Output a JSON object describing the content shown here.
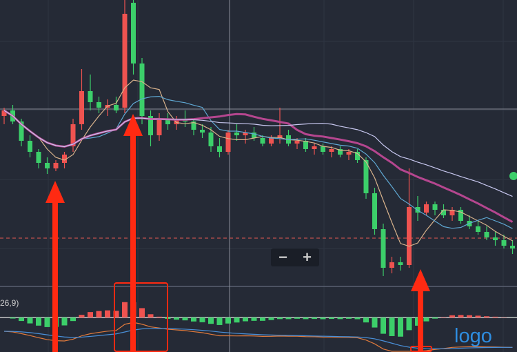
{
  "chart_data": {
    "type": "candlestick",
    "up_color": "#ef5350",
    "down_color": "#3ccf6a",
    "ylim": [
      0,
      105
    ],
    "candles_ohlc": [
      [
        63,
        66,
        60,
        65
      ],
      [
        65,
        67,
        60,
        61
      ],
      [
        61,
        62,
        52,
        54
      ],
      [
        54,
        56,
        48,
        50
      ],
      [
        50,
        51,
        44,
        46
      ],
      [
        46,
        48,
        42,
        44
      ],
      [
        44,
        47,
        43,
        46
      ],
      [
        46,
        50,
        44,
        49
      ],
      [
        52,
        62,
        50,
        60
      ],
      [
        60,
        80,
        58,
        72
      ],
      [
        72,
        78,
        65,
        68
      ],
      [
        68,
        70,
        64,
        66
      ],
      [
        66,
        69,
        63,
        67
      ],
      [
        67,
        70,
        64,
        65
      ],
      [
        66,
        105,
        64,
        100
      ],
      [
        104,
        106,
        78,
        82
      ],
      [
        82,
        84,
        60,
        63
      ],
      [
        63,
        65,
        52,
        56
      ],
      [
        56,
        64,
        54,
        62
      ],
      [
        62,
        64,
        58,
        60
      ],
      [
        60,
        63,
        58,
        62
      ],
      [
        62,
        65,
        59,
        61
      ],
      [
        61,
        62,
        56,
        58
      ],
      [
        58,
        60,
        55,
        57
      ],
      [
        57,
        59,
        50,
        52
      ],
      [
        52,
        55,
        48,
        50
      ],
      [
        50,
        58,
        49,
        57
      ],
      [
        57,
        60,
        54,
        56
      ],
      [
        56,
        58,
        53,
        57
      ],
      [
        57,
        59,
        54,
        55
      ],
      [
        55,
        56,
        52,
        53
      ],
      [
        53,
        56,
        52,
        55
      ],
      [
        55,
        66,
        53,
        56
      ],
      [
        56,
        58,
        52,
        53
      ],
      [
        53,
        55,
        51,
        54
      ],
      [
        54,
        55,
        50,
        51
      ],
      [
        51,
        53,
        49,
        52
      ],
      [
        52,
        53,
        49,
        50
      ],
      [
        50,
        52,
        48,
        51
      ],
      [
        51,
        52,
        48,
        49
      ],
      [
        49,
        51,
        47,
        50
      ],
      [
        50,
        51,
        46,
        47
      ],
      [
        47,
        48,
        33,
        35
      ],
      [
        35,
        37,
        20,
        22
      ],
      [
        22,
        24,
        5,
        8
      ],
      [
        8,
        12,
        6,
        10
      ],
      [
        10,
        12,
        7,
        9
      ],
      [
        9,
        44,
        8,
        30
      ],
      [
        30,
        34,
        25,
        28
      ],
      [
        28,
        32,
        27,
        31
      ],
      [
        31,
        32,
        27,
        29
      ],
      [
        29,
        31,
        26,
        27
      ],
      [
        27,
        30,
        25,
        29
      ],
      [
        29,
        30,
        24,
        25
      ],
      [
        25,
        27,
        22,
        23
      ],
      [
        23,
        25,
        20,
        21
      ],
      [
        21,
        23,
        18,
        19
      ],
      [
        19,
        21,
        16,
        18
      ],
      [
        18,
        20,
        15,
        16
      ],
      [
        16,
        18,
        13,
        15
      ]
    ],
    "moving_averages": [
      {
        "period": 5,
        "color": "#d9b38c"
      },
      {
        "period": 10,
        "color": "#5fa8d3"
      },
      {
        "period": 20,
        "color": "#b5468f"
      },
      {
        "period": 30,
        "color": "#c8c8f0"
      }
    ],
    "reference_line": {
      "value": 18.75,
      "color": "#c0504d"
    },
    "crosshair": {
      "price": 65.5
    },
    "macd": {
      "label_partial": "26,9)",
      "dif_color": "#e07a3c",
      "dea_color": "#4a90d9"
    }
  },
  "zoom_controls": {
    "minus": "−",
    "plus": "+"
  },
  "watermark": "logo",
  "annotation_color": "#ff2a12"
}
